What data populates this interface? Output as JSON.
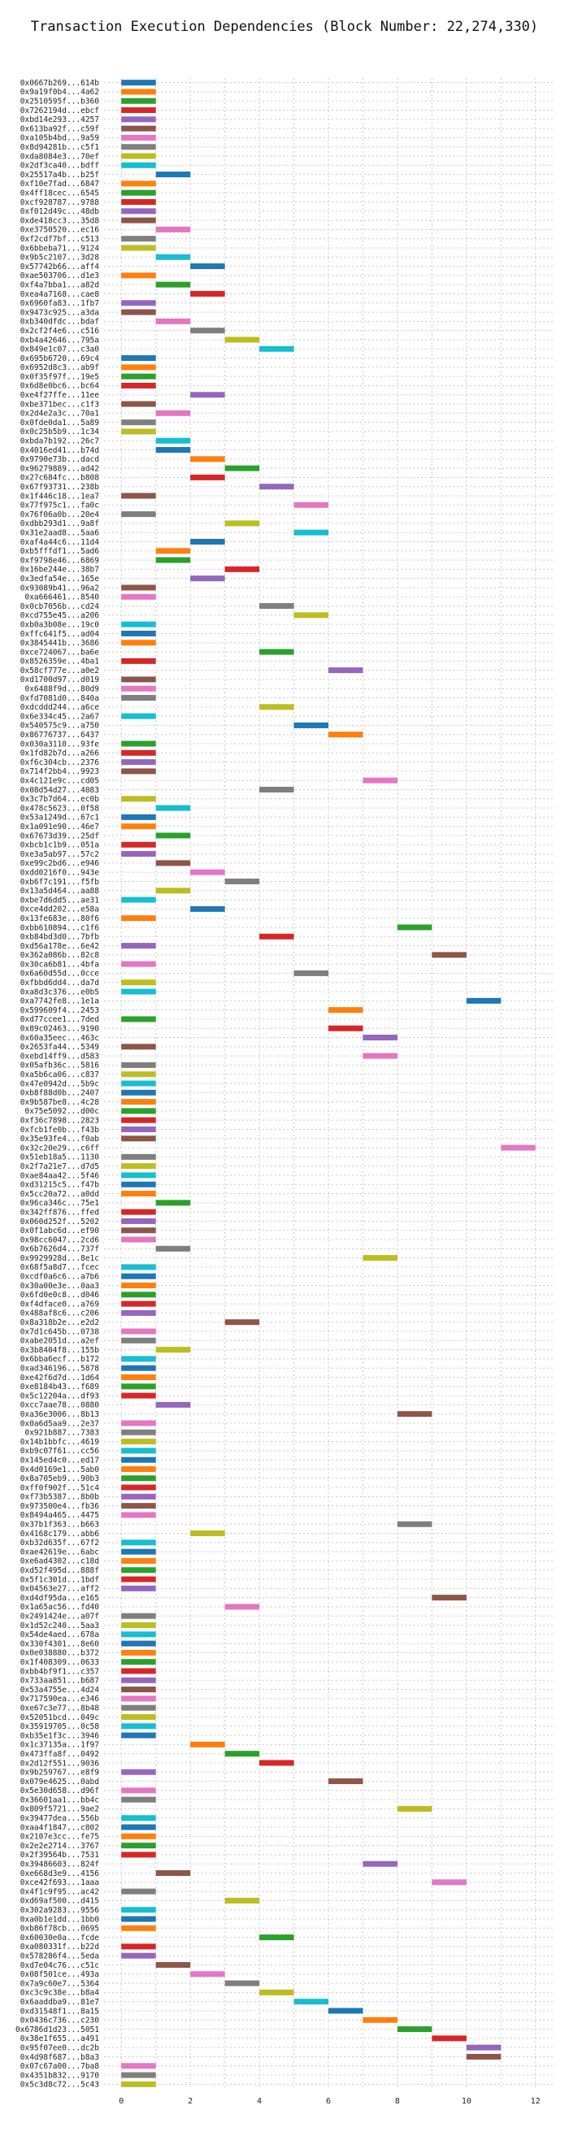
{
  "chart_data": {
    "type": "bar",
    "orientation": "horizontal-gantt",
    "title": "Transaction Execution Dependencies (Block Number: 22,274,330)",
    "xlabel": "",
    "ylabel": "",
    "xlim": [
      -0.5,
      12.5
    ],
    "xticks": [
      "0",
      "2",
      "4",
      "6",
      "8",
      "10",
      "12"
    ],
    "grid": true,
    "bar_width": 1,
    "palette": [
      "#1f77b4",
      "#ff7f0e",
      "#2ca02c",
      "#d62728",
      "#9467bd",
      "#8c564b",
      "#e377c2",
      "#7f7f7f",
      "#bcbd22",
      "#17becf"
    ],
    "rows": [
      {
        "label": "0x0667b269...614b",
        "start": 0
      },
      {
        "label": "0x9a19f0b4...4a62",
        "start": 0
      },
      {
        "label": "0x2510595f...b360",
        "start": 0
      },
      {
        "label": "0x7262194d...ebcf",
        "start": 0
      },
      {
        "label": "0xbd14e293...4257",
        "start": 0
      },
      {
        "label": "0x613ba92f...c59f",
        "start": 0
      },
      {
        "label": "0xa105b4bd...9a59",
        "start": 0
      },
      {
        "label": "0x8d94281b...c5f1",
        "start": 0
      },
      {
        "label": "0xda8084e3...70ef",
        "start": 0
      },
      {
        "label": "0x2df3ca40...bdff",
        "start": 0
      },
      {
        "label": "0x25517a4b...b25f",
        "start": 1
      },
      {
        "label": "0xf10e7fad...6847",
        "start": 0
      },
      {
        "label": "0x4ff18cec...6545",
        "start": 0
      },
      {
        "label": "0xcf928787...9788",
        "start": 0
      },
      {
        "label": "0xf012d49c...48db",
        "start": 0
      },
      {
        "label": "0xde418cc3...35d8",
        "start": 0
      },
      {
        "label": "0xe3750520...ec16",
        "start": 1
      },
      {
        "label": "0xf2cdf7bf...c513",
        "start": 0
      },
      {
        "label": "0x6bbeba71...9124",
        "start": 0
      },
      {
        "label": "0x9b5c2107...3d28",
        "start": 1
      },
      {
        "label": "0x57742b66...aff4",
        "start": 2
      },
      {
        "label": "0xae503706...d1e3",
        "start": 0
      },
      {
        "label": "0xf4a7bba1...a82d",
        "start": 1
      },
      {
        "label": "0xea4a7168...cae8",
        "start": 2
      },
      {
        "label": "0x6960fa83...1fb7",
        "start": 0
      },
      {
        "label": "0x9473c925...a3da",
        "start": 0
      },
      {
        "label": "0xb340dfdc...bdaf",
        "start": 1
      },
      {
        "label": "0x2cf2f4e6...c516",
        "start": 2
      },
      {
        "label": "0xb4a42646...795a",
        "start": 3
      },
      {
        "label": "0x849e1c07...c3a0",
        "start": 4
      },
      {
        "label": "0x695b6720...69c4",
        "start": 0
      },
      {
        "label": "0x6952d8c3...ab9f",
        "start": 0
      },
      {
        "label": "0x0f35f97f...19e5",
        "start": 0
      },
      {
        "label": "0x6d8e0bc6...bc64",
        "start": 0
      },
      {
        "label": "0xe4f27ffe...11ee",
        "start": 2
      },
      {
        "label": "0xbe371bec...c1f3",
        "start": 0
      },
      {
        "label": "0x2d4e2a3c...70a1",
        "start": 1
      },
      {
        "label": "0x0fde0da1...5a89",
        "start": 0
      },
      {
        "label": "0x0c25b5b9...1c34",
        "start": 0
      },
      {
        "label": "0xbda7b192...26c7",
        "start": 1
      },
      {
        "label": "0x4016ed41...b74d",
        "start": 1
      },
      {
        "label": "0x9790e73b...dacd",
        "start": 2
      },
      {
        "label": "0x96279889...ad42",
        "start": 3
      },
      {
        "label": "0x27c684fc...b808",
        "start": 2
      },
      {
        "label": "0x67f93731...238b",
        "start": 4
      },
      {
        "label": "0x1f446c18...1ea7",
        "start": 0
      },
      {
        "label": "0x77f975c1...fa0c",
        "start": 5
      },
      {
        "label": "0x76f06a0b...20e4",
        "start": 0
      },
      {
        "label": "0xdbb293d1...9a8f",
        "start": 3
      },
      {
        "label": "0x31e2aad8...5aa6",
        "start": 5
      },
      {
        "label": "0xaf4a44c6...11d4",
        "start": 2
      },
      {
        "label": "0xb5fffdf1...5ad6",
        "start": 1
      },
      {
        "label": "0xf9798e46...6869",
        "start": 1
      },
      {
        "label": "0x16be244e...38b7",
        "start": 3
      },
      {
        "label": "0x3edfa54e...165e",
        "start": 2
      },
      {
        "label": "0x93089b41...96a2",
        "start": 0
      },
      {
        "label": "0xa666461...8540",
        "start": 0
      },
      {
        "label": "0x0cb7056b...cd24",
        "start": 4
      },
      {
        "label": "0xcd755e45...a206",
        "start": 5
      },
      {
        "label": "0xb0a3b08e...19c0",
        "start": 0
      },
      {
        "label": "0xffc641f5...ad04",
        "start": 0
      },
      {
        "label": "0x3845441b...3686",
        "start": 0
      },
      {
        "label": "0xce724067...ba6e",
        "start": 4
      },
      {
        "label": "0x8526359e...4ba1",
        "start": 0
      },
      {
        "label": "0x58cf777e...a0e2",
        "start": 6
      },
      {
        "label": "0xd1700d97...d019",
        "start": 0
      },
      {
        "label": "0x6488f9d...80d9",
        "start": 0
      },
      {
        "label": "0xfd7081d0...840a",
        "start": 0
      },
      {
        "label": "0xdcddd244...a6ce",
        "start": 4
      },
      {
        "label": "0x6e334c45...2a67",
        "start": 0
      },
      {
        "label": "0x540575c9...a750",
        "start": 5
      },
      {
        "label": "0x86776737...6437",
        "start": 6
      },
      {
        "label": "0x030a3110...93fe",
        "start": 0
      },
      {
        "label": "0x1fd82b7d...a266",
        "start": 0
      },
      {
        "label": "0xf6c304cb...2376",
        "start": 0
      },
      {
        "label": "0x714f2bb4...9923",
        "start": 0
      },
      {
        "label": "0x4c121e9c...cd05",
        "start": 7
      },
      {
        "label": "0x08d54d27...4083",
        "start": 4
      },
      {
        "label": "0x3c7b7d64...ec0b",
        "start": 0
      },
      {
        "label": "0x478c5623...0f58",
        "start": 1
      },
      {
        "label": "0x53a1249d...67c1",
        "start": 0
      },
      {
        "label": "0x1a091e90...46e7",
        "start": 0
      },
      {
        "label": "0x67673d39...25df",
        "start": 1
      },
      {
        "label": "0xbcb1c1b9...051a",
        "start": 0
      },
      {
        "label": "0xe3a5ab97...57c2",
        "start": 0
      },
      {
        "label": "0xe99c2bd6...e946",
        "start": 1
      },
      {
        "label": "0xdd0216f0...943e",
        "start": 2
      },
      {
        "label": "0xb6f7c191...f5fb",
        "start": 3
      },
      {
        "label": "0x13a5d464...aa88",
        "start": 1
      },
      {
        "label": "0xbe7d6dd5...ae31",
        "start": 0
      },
      {
        "label": "0xce4dd202...e58a",
        "start": 2
      },
      {
        "label": "0x13fe683e...80f6",
        "start": 0
      },
      {
        "label": "0xbb610894...c1f6",
        "start": 8
      },
      {
        "label": "0xb84bd3d0...7bfb",
        "start": 4
      },
      {
        "label": "0xd56a178e...6e42",
        "start": 0
      },
      {
        "label": "0x362a086b...82c8",
        "start": 9
      },
      {
        "label": "0x30ca6b81...4bfa",
        "start": 0
      },
      {
        "label": "0x6a60d55d...0cce",
        "start": 5
      },
      {
        "label": "0xfbbd6dd4...da7d",
        "start": 0
      },
      {
        "label": "0xa8d3c376...e0b5",
        "start": 0
      },
      {
        "label": "0xa7742fe8...1e1a",
        "start": 10
      },
      {
        "label": "0x599609f4...2453",
        "start": 6
      },
      {
        "label": "0xd77ccee1...7ded",
        "start": 0
      },
      {
        "label": "0x89c02463...9190",
        "start": 6
      },
      {
        "label": "0x60a35eec...463c",
        "start": 7
      },
      {
        "label": "0x2653fa44...5349",
        "start": 0
      },
      {
        "label": "0xebd14ff9...d583",
        "start": 7
      },
      {
        "label": "0x05afb36c...5816",
        "start": 0
      },
      {
        "label": "0xa5b6ca06...c837",
        "start": 0
      },
      {
        "label": "0x47e0942d...5b9c",
        "start": 0
      },
      {
        "label": "0xb8f88d0b...2407",
        "start": 0
      },
      {
        "label": "0x9b587be8...4c28",
        "start": 0
      },
      {
        "label": "0x75e5092...d00c",
        "start": 0
      },
      {
        "label": "0xf36c7898...2823",
        "start": 0
      },
      {
        "label": "0xfcb1fe0b...f43b",
        "start": 0
      },
      {
        "label": "0x35e93fe4...f0ab",
        "start": 0
      },
      {
        "label": "0x32c20e29...c6ff",
        "start": 11
      },
      {
        "label": "0x51eb18a5...1130",
        "start": 0
      },
      {
        "label": "0x2f7a21e7...d7d5",
        "start": 0
      },
      {
        "label": "0xae84aa42...5f46",
        "start": 0
      },
      {
        "label": "0xd31215c5...f47b",
        "start": 0
      },
      {
        "label": "0x5cc20a72...a0dd",
        "start": 0
      },
      {
        "label": "0x96ca346c...75e1",
        "start": 1
      },
      {
        "label": "0x342ff876...ffed",
        "start": 0
      },
      {
        "label": "0x060d252f...5202",
        "start": 0
      },
      {
        "label": "0x0f1abc6d...ef90",
        "start": 0
      },
      {
        "label": "0x98cc6047...2cd6",
        "start": 0
      },
      {
        "label": "0x6b7626d4...737f",
        "start": 1
      },
      {
        "label": "0x9929928d...8e1c",
        "start": 7
      },
      {
        "label": "0x68f5a8d7...fcec",
        "start": 0
      },
      {
        "label": "0xcdf0a6c6...a7b6",
        "start": 0
      },
      {
        "label": "0x30a00e3e...0aa3",
        "start": 0
      },
      {
        "label": "0x6fd0e0c8...d046",
        "start": 0
      },
      {
        "label": "0xf4dface0...a769",
        "start": 0
      },
      {
        "label": "0x488af8c6...c206",
        "start": 0
      },
      {
        "label": "0x8a318b2e...e2d2",
        "start": 3
      },
      {
        "label": "0x7d1c645b...0738",
        "start": 0
      },
      {
        "label": "0xabe2051d...a2ef",
        "start": 0
      },
      {
        "label": "0x3b8404f8...155b",
        "start": 1
      },
      {
        "label": "0x6bba6ecf...b172",
        "start": 0
      },
      {
        "label": "0xad346196...5878",
        "start": 0
      },
      {
        "label": "0xe42f6d7d...1d64",
        "start": 0
      },
      {
        "label": "0xe8184b43...f689",
        "start": 0
      },
      {
        "label": "0x5c12204a...df93",
        "start": 0
      },
      {
        "label": "0xcc7aae78...0880",
        "start": 1
      },
      {
        "label": "0xa36e3006...8b13",
        "start": 8
      },
      {
        "label": "0x0a6d5aa9...2e37",
        "start": 0
      },
      {
        "label": "0x921b887...7383",
        "start": 0
      },
      {
        "label": "0x14b1bbfc...4619",
        "start": 0
      },
      {
        "label": "0xb9c07f61...cc56",
        "start": 0
      },
      {
        "label": "0x145ed4c0...ed17",
        "start": 0
      },
      {
        "label": "0x4d0169e1...5ab0",
        "start": 0
      },
      {
        "label": "0x8a705eb9...90b3",
        "start": 0
      },
      {
        "label": "0xff0f902f...51c4",
        "start": 0
      },
      {
        "label": "0xf73b5387...8b0b",
        "start": 0
      },
      {
        "label": "0x973500e4...fb36",
        "start": 0
      },
      {
        "label": "0x8494a465...4475",
        "start": 0
      },
      {
        "label": "0x37b1f363...b663",
        "start": 8
      },
      {
        "label": "0x4168c179...abb6",
        "start": 2
      },
      {
        "label": "0xb32d635f...67f2",
        "start": 0
      },
      {
        "label": "0xae42619e...6abc",
        "start": 0
      },
      {
        "label": "0xe6ad4302...c18d",
        "start": 0
      },
      {
        "label": "0xd52f495d...888f",
        "start": 0
      },
      {
        "label": "0x5f1c301d...1bdf",
        "start": 0
      },
      {
        "label": "0x04563e27...aff2",
        "start": 0
      },
      {
        "label": "0xd4df95da...e165",
        "start": 9
      },
      {
        "label": "0x1a65ac56...fd40",
        "start": 3
      },
      {
        "label": "0x2491424e...a07f",
        "start": 0
      },
      {
        "label": "0x1d52c240...5aa3",
        "start": 0
      },
      {
        "label": "0x54de4aed...678a",
        "start": 0
      },
      {
        "label": "0x330f4301...8e60",
        "start": 0
      },
      {
        "label": "0x0e038880...b372",
        "start": 0
      },
      {
        "label": "0x1f408309...0633",
        "start": 0
      },
      {
        "label": "0xbb4bf9f1...c357",
        "start": 0
      },
      {
        "label": "0x733aa851...b687",
        "start": 0
      },
      {
        "label": "0x53a4755e...4d24",
        "start": 0
      },
      {
        "label": "0x717590ea...e346",
        "start": 0
      },
      {
        "label": "0xe67c3e77...8b48",
        "start": 0
      },
      {
        "label": "0x52051bcd...049c",
        "start": 0
      },
      {
        "label": "0x35919705...0c58",
        "start": 0
      },
      {
        "label": "0xb35e1f3c...3946",
        "start": 0
      },
      {
        "label": "0x1c37135a...1f97",
        "start": 2
      },
      {
        "label": "0x473ffa8f...0492",
        "start": 3
      },
      {
        "label": "0x2d12f551...9036",
        "start": 4
      },
      {
        "label": "0x9b259767...e8f9",
        "start": 0
      },
      {
        "label": "0x079e4625...0abd",
        "start": 6
      },
      {
        "label": "0x5e30d658...d96f",
        "start": 0
      },
      {
        "label": "0x36601aa1...bb4c",
        "start": 0
      },
      {
        "label": "0x809f5721...9ae2",
        "start": 8
      },
      {
        "label": "0x39477dea...556b",
        "start": 0
      },
      {
        "label": "0xaa4f1847...c802",
        "start": 0
      },
      {
        "label": "0x2107e3cc...fe75",
        "start": 0
      },
      {
        "label": "0x2e2e2714...3767",
        "start": 0
      },
      {
        "label": "0x2f39564b...7531",
        "start": 0
      },
      {
        "label": "0x39486603...824f",
        "start": 7
      },
      {
        "label": "0xe668d3e9...4156",
        "start": 1
      },
      {
        "label": "0xce42f693...1aaa",
        "start": 9
      },
      {
        "label": "0x4f1c9f95...ac42",
        "start": 0
      },
      {
        "label": "0xd69af500...d415",
        "start": 3
      },
      {
        "label": "0x302a9283...9556",
        "start": 0
      },
      {
        "label": "0xa0b1e1dd...1bb0",
        "start": 0
      },
      {
        "label": "0xb86f78cb...0695",
        "start": 0
      },
      {
        "label": "0x60030e0a...fcde",
        "start": 4
      },
      {
        "label": "0xa080331f...b22d",
        "start": 0
      },
      {
        "label": "0x578286f4...5eda",
        "start": 0
      },
      {
        "label": "0xd7e04c76...c51c",
        "start": 1
      },
      {
        "label": "0x08f501ce...493a",
        "start": 2
      },
      {
        "label": "0x7a9c60e7...5364",
        "start": 3
      },
      {
        "label": "0xc3c9c38e...b8a4",
        "start": 4
      },
      {
        "label": "0x6aaddba9...81e7",
        "start": 5
      },
      {
        "label": "0xd31548f1...8a15",
        "start": 6
      },
      {
        "label": "0x0436c736...c230",
        "start": 7
      },
      {
        "label": "0x6786d1d23...5051",
        "start": 8
      },
      {
        "label": "0x38e1f655...a491",
        "start": 9
      },
      {
        "label": "0x95f07ee0...dc2b",
        "start": 10
      },
      {
        "label": "0x4d98f687...b8a3",
        "start": 10
      },
      {
        "label": "0x07c67a00...7ba8",
        "start": 0
      },
      {
        "label": "0x4351b832...9170",
        "start": 0
      },
      {
        "label": "0x5c3d8c72...5c43",
        "start": 0
      }
    ]
  }
}
